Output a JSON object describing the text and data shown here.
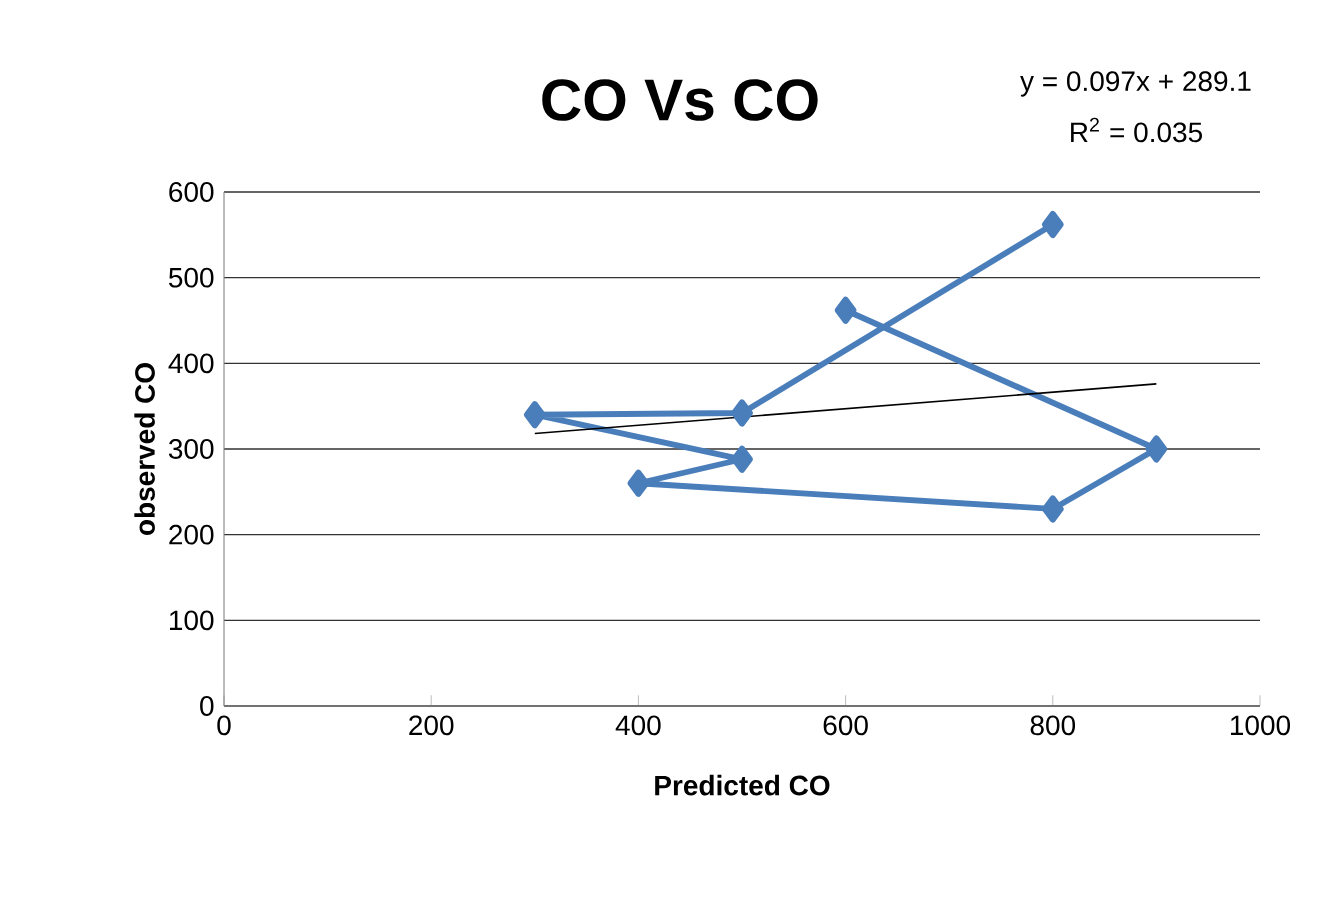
{
  "chart_data": {
    "type": "line",
    "title": "CO Vs CO",
    "xlabel": "Predicted CO",
    "ylabel": "observed CO",
    "annotations": [
      "y = 0.097x + 289.1",
      "R$^{2}$ = 0.035"
    ],
    "xlim": [
      0,
      1000
    ],
    "xticks": [
      0,
      200,
      400,
      600,
      800,
      1000
    ],
    "ylim": [
      0,
      600
    ],
    "yticks": [
      0,
      100,
      200,
      300,
      400,
      500,
      600
    ],
    "grid": "y",
    "marker": "diamond",
    "line_style": "solid",
    "series": [
      {
        "color": "#4a7ebb",
        "x": [
          600,
          900,
          800,
          400,
          500,
          300,
          500,
          800
        ],
        "values": [
          462,
          300,
          230,
          260,
          288,
          340,
          342,
          562
        ]
      },
      {
        "type": "line",
        "color": "#000000",
        "marker": "none",
        "x": [
          300,
          900
        ],
        "values": [
          318,
          376
        ]
      }
    ]
  }
}
